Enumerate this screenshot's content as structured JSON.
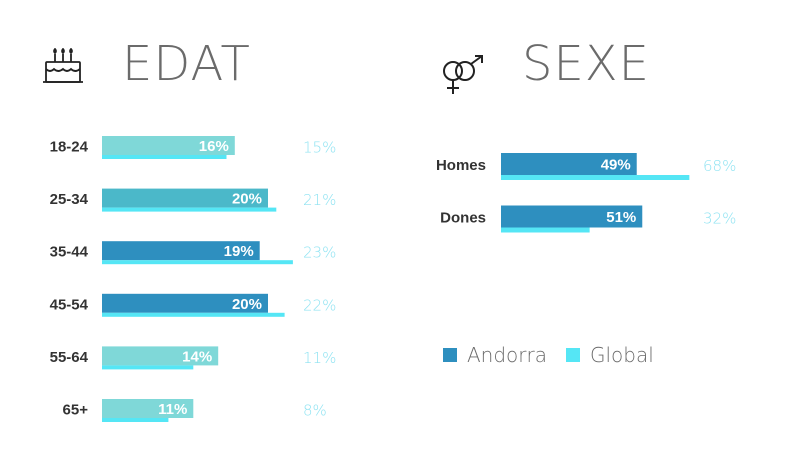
{
  "colors": {
    "andorra_dark": "#2e8fbf",
    "andorra_light": "#7fd8d8",
    "andorra_mid": "#4bb8c9",
    "global": "#55e6f5",
    "global_text": "#8fe3f2",
    "label": "#333333"
  },
  "edat": {
    "title": "EDAT",
    "icon": "cake-icon"
  },
  "sexe": {
    "title": "SEXE",
    "icon": "gender-icon"
  },
  "legend": {
    "andorra": "Andorra",
    "global": "Global"
  },
  "chart_data": [
    {
      "type": "bar",
      "title": "EDAT",
      "categories": [
        "18-24",
        "25-34",
        "35-44",
        "45-54",
        "55-64",
        "65+"
      ],
      "series": [
        {
          "name": "Andorra",
          "values": [
            16,
            20,
            19,
            20,
            14,
            11
          ],
          "labels": [
            "16%",
            "20%",
            "19%",
            "20%",
            "14%",
            "11%"
          ]
        },
        {
          "name": "Global",
          "values": [
            15,
            21,
            23,
            22,
            11,
            8
          ],
          "labels": [
            "15%",
            "21%",
            "23%",
            "22%",
            "11%",
            "8%"
          ]
        }
      ],
      "andorra_shades": [
        "light",
        "mid",
        "dark",
        "dark",
        "light",
        "light"
      ]
    },
    {
      "type": "bar",
      "title": "SEXE",
      "categories": [
        "Homes",
        "Dones"
      ],
      "series": [
        {
          "name": "Andorra",
          "values": [
            49,
            51
          ],
          "labels": [
            "49%",
            "51%"
          ]
        },
        {
          "name": "Global",
          "values": [
            68,
            32
          ],
          "labels": [
            "68%",
            "32%"
          ]
        }
      ],
      "andorra_shades": [
        "dark",
        "dark"
      ]
    }
  ]
}
